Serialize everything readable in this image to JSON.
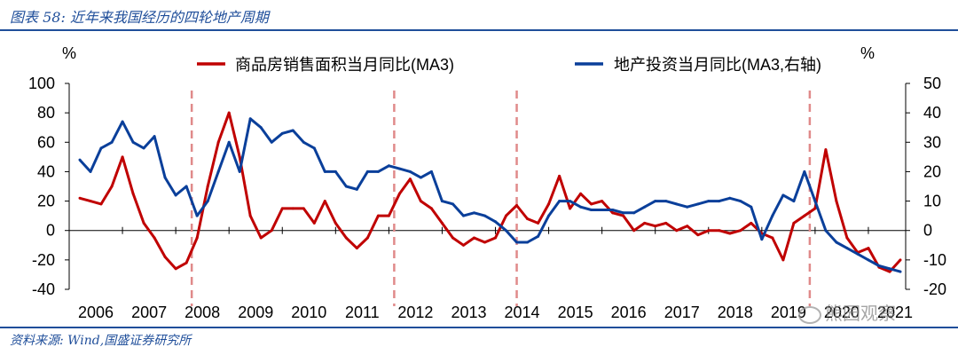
{
  "header": {
    "title": "图表 58:  近年来我国经历的四轮地产周期"
  },
  "footer": {
    "source": "资料来源:  Wind,国盛证券研究所"
  },
  "watermark": {
    "text": "熊园观察"
  },
  "colors": {
    "series_sales": "#c00000",
    "series_invest": "#0a3f9a",
    "cycle_line": "#e08a8a",
    "brand": "#1f4e9a"
  },
  "chart_data": {
    "type": "line",
    "left_unit": "%",
    "right_unit": "%",
    "xlabels": [
      "2006",
      "2007",
      "2008",
      "2009",
      "2010",
      "2011",
      "2012",
      "2013",
      "2014",
      "2015",
      "2016",
      "2017",
      "2018",
      "2019",
      "2020",
      "2021"
    ],
    "xlim": [
      2006,
      2021.7
    ],
    "left_ylim": [
      -40,
      100
    ],
    "left_ticks": [
      "100",
      "80",
      "60",
      "40",
      "20",
      "0",
      "-20",
      "-40"
    ],
    "right_ylim": [
      -20,
      50
    ],
    "right_ticks": [
      "50",
      "40",
      "30",
      "20",
      "10",
      "0",
      "-10",
      "-20"
    ],
    "cycle_lines": [
      2008.3,
      2012.1,
      2014.4,
      2019.9
    ],
    "series": [
      {
        "name": "商品房销售面积当月同比(MA3)",
        "axis": "left",
        "x": [
          2006.2,
          2006.4,
          2006.6,
          2006.8,
          2007.0,
          2007.2,
          2007.4,
          2007.6,
          2007.8,
          2008.0,
          2008.2,
          2008.4,
          2008.6,
          2008.8,
          2009.0,
          2009.2,
          2009.4,
          2009.6,
          2009.8,
          2010.0,
          2010.2,
          2010.4,
          2010.6,
          2010.8,
          2011.0,
          2011.2,
          2011.4,
          2011.6,
          2011.8,
          2012.0,
          2012.2,
          2012.4,
          2012.6,
          2012.8,
          2013.0,
          2013.2,
          2013.4,
          2013.6,
          2013.8,
          2014.0,
          2014.2,
          2014.4,
          2014.6,
          2014.8,
          2015.0,
          2015.2,
          2015.4,
          2015.6,
          2015.8,
          2016.0,
          2016.2,
          2016.4,
          2016.6,
          2016.8,
          2017.0,
          2017.2,
          2017.4,
          2017.6,
          2017.8,
          2018.0,
          2018.2,
          2018.4,
          2018.6,
          2018.8,
          2019.0,
          2019.2,
          2019.4,
          2019.6,
          2019.8,
          2020.0,
          2020.2,
          2020.4,
          2020.6,
          2020.8,
          2021.0,
          2021.2,
          2021.4,
          2021.6
        ],
        "values": [
          22,
          20,
          18,
          30,
          50,
          25,
          5,
          -5,
          -18,
          -26,
          -22,
          -5,
          30,
          60,
          80,
          50,
          10,
          -5,
          0,
          15,
          15,
          15,
          5,
          20,
          5,
          -5,
          -12,
          -5,
          10,
          10,
          25,
          35,
          20,
          15,
          5,
          -5,
          -10,
          -5,
          -8,
          -5,
          10,
          17,
          8,
          5,
          18,
          37,
          15,
          25,
          18,
          20,
          12,
          10,
          0,
          5,
          3,
          5,
          0,
          3,
          -3,
          0,
          0,
          -2,
          0,
          5,
          -2,
          -5,
          -20,
          5,
          10,
          15,
          55,
          20,
          -5,
          -15,
          -12,
          -25,
          -28,
          -20
        ],
        "color_key": "series_sales"
      },
      {
        "name": "地产投资当月同比(MA3,右轴)",
        "axis": "right",
        "x": [
          2006.2,
          2006.4,
          2006.6,
          2006.8,
          2007.0,
          2007.2,
          2007.4,
          2007.6,
          2007.8,
          2008.0,
          2008.2,
          2008.4,
          2008.6,
          2008.8,
          2009.0,
          2009.2,
          2009.4,
          2009.6,
          2009.8,
          2010.0,
          2010.2,
          2010.4,
          2010.6,
          2010.8,
          2011.0,
          2011.2,
          2011.4,
          2011.6,
          2011.8,
          2012.0,
          2012.2,
          2012.4,
          2012.6,
          2012.8,
          2013.0,
          2013.2,
          2013.4,
          2013.6,
          2013.8,
          2014.0,
          2014.2,
          2014.4,
          2014.6,
          2014.8,
          2015.0,
          2015.2,
          2015.4,
          2015.6,
          2015.8,
          2016.0,
          2016.2,
          2016.4,
          2016.6,
          2016.8,
          2017.0,
          2017.2,
          2017.4,
          2017.6,
          2017.8,
          2018.0,
          2018.2,
          2018.4,
          2018.6,
          2018.8,
          2019.0,
          2019.2,
          2019.4,
          2019.6,
          2019.8,
          2020.0,
          2020.2,
          2020.4,
          2020.6,
          2020.8,
          2021.0,
          2021.2,
          2021.4,
          2021.6
        ],
        "values": [
          24,
          20,
          28,
          30,
          37,
          30,
          28,
          32,
          18,
          12,
          15,
          5,
          10,
          20,
          30,
          20,
          38,
          35,
          30,
          33,
          34,
          30,
          28,
          20,
          20,
          15,
          14,
          20,
          20,
          22,
          21,
          20,
          18,
          20,
          10,
          9,
          5,
          6,
          5,
          3,
          0,
          -4,
          -4,
          -2,
          5,
          10,
          10,
          8,
          7,
          7,
          7,
          6,
          6,
          8,
          10,
          10,
          9,
          8,
          9,
          10,
          10,
          11,
          10,
          8,
          -3,
          5,
          12,
          10,
          20,
          10,
          0,
          -4,
          -6,
          -8,
          -10,
          -12,
          -13,
          -14
        ],
        "color_key": "series_invest"
      }
    ]
  }
}
